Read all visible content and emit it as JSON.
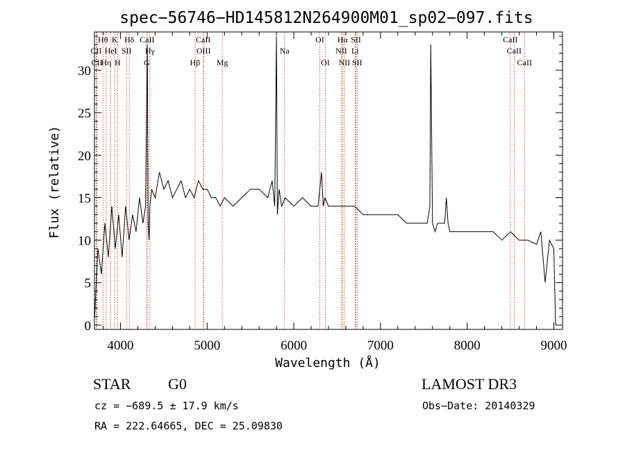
{
  "chart_data": {
    "type": "line",
    "title": "spec−56746−HD145812N264900M01_sp02−097.fits",
    "xlabel": "Wavelength (Å)",
    "ylabel": "Flux (relative)",
    "xlim": [
      3700,
      9100
    ],
    "ylim": [
      -0.5,
      34.5
    ],
    "xticks": [
      4000,
      5000,
      6000,
      7000,
      8000,
      9000
    ],
    "yticks": [
      0,
      5,
      10,
      15,
      20,
      25,
      30
    ],
    "grid": false,
    "series": [
      {
        "x": [
          3700,
          3740,
          3780,
          3820,
          3860,
          3900,
          3940,
          3980,
          4020,
          4060,
          4100,
          4140,
          4180,
          4220,
          4260,
          4290,
          4310,
          4320,
          4330,
          4340,
          4360,
          4400,
          4450,
          4500,
          4550,
          4600,
          4650,
          4700,
          4750,
          4800,
          4850,
          4900,
          4950,
          5000,
          5050,
          5100,
          5150,
          5200,
          5300,
          5400,
          5500,
          5600,
          5700,
          5750,
          5780,
          5800,
          5810,
          5830,
          5860,
          5900,
          6000,
          6100,
          6200,
          6280,
          6300,
          6320,
          6340,
          6360,
          6400,
          6500,
          6600,
          6700,
          6800,
          6900,
          7000,
          7100,
          7200,
          7300,
          7400,
          7500,
          7540,
          7570,
          7580,
          7600,
          7630,
          7660,
          7700,
          7740,
          7760,
          7780,
          7800,
          7900,
          8000,
          8100,
          8200,
          8300,
          8400,
          8500,
          8600,
          8700,
          8800,
          8850,
          8900,
          8950,
          9000,
          9020
        ],
        "y": [
          0.5,
          9,
          6,
          12,
          8,
          14,
          9,
          13,
          8,
          14,
          10,
          13,
          11,
          15,
          12,
          14,
          33,
          12,
          10,
          14,
          16,
          15,
          18,
          16,
          17,
          15,
          16,
          17,
          15,
          16,
          15,
          17,
          16,
          16,
          15,
          15,
          14,
          15,
          14,
          15,
          16,
          16,
          15,
          17,
          14,
          34,
          13,
          16,
          14,
          15,
          14,
          15,
          14,
          14,
          16,
          18,
          14,
          15,
          14,
          14,
          14,
          14,
          13,
          13,
          13,
          13,
          13,
          12,
          12,
          12,
          12,
          14,
          33,
          12,
          11,
          12,
          12,
          12,
          15,
          12,
          11,
          11,
          11,
          11,
          11,
          11,
          10,
          11,
          10,
          10,
          9.5,
          11,
          5,
          10,
          9,
          0
        ]
      }
    ],
    "line_markers": [
      {
        "label": "Hθ",
        "wave": 3798,
        "row": 0
      },
      {
        "label": "K",
        "wave": 3934,
        "row": 0
      },
      {
        "label": "Hδ",
        "wave": 4102,
        "row": 0
      },
      {
        "label": "CaII",
        "wave": 4308,
        "row": 0
      },
      {
        "label": "CaII",
        "wave": 4955,
        "row": 0
      },
      {
        "label": "OI",
        "wave": 6300,
        "row": 0
      },
      {
        "label": "Hα",
        "wave": 6563,
        "row": 0
      },
      {
        "label": "SII",
        "wave": 6717,
        "row": 0
      },
      {
        "label": "CaII",
        "wave": 8498,
        "row": 0
      },
      {
        "label": "CII",
        "wave": 3720,
        "row": 1
      },
      {
        "label": "HeI",
        "wave": 3889,
        "row": 1
      },
      {
        "label": "SII",
        "wave": 4070,
        "row": 1
      },
      {
        "label": "Hγ",
        "wave": 4340,
        "row": 1
      },
      {
        "label": "OIII",
        "wave": 4959,
        "row": 1
      },
      {
        "label": "Na",
        "wave": 5893,
        "row": 1
      },
      {
        "label": "NII",
        "wave": 6548,
        "row": 1
      },
      {
        "label": "Li",
        "wave": 6707,
        "row": 1
      },
      {
        "label": "CaII",
        "wave": 8542,
        "row": 1
      },
      {
        "label": "CII",
        "wave": 3728,
        "row": 2
      },
      {
        "label": "Hη",
        "wave": 3835,
        "row": 2
      },
      {
        "label": "H",
        "wave": 3968,
        "row": 2
      },
      {
        "label": "G",
        "wave": 4304,
        "row": 2
      },
      {
        "label": "Hβ",
        "wave": 4861,
        "row": 2
      },
      {
        "label": "Mg",
        "wave": 5175,
        "row": 2
      },
      {
        "label": "OI",
        "wave": 6364,
        "row": 2
      },
      {
        "label": "NII",
        "wave": 6584,
        "row": 2
      },
      {
        "label": "SII",
        "wave": 6731,
        "row": 2
      },
      {
        "label": "CaII",
        "wave": 8662,
        "row": 2
      }
    ],
    "marker_color": "#b22222",
    "line_color": "#000000"
  },
  "info": {
    "object_class": "STAR",
    "subclass": "G0",
    "survey": "LAMOST DR3",
    "redshift": "cz = −689.5 ± 17.9 km/s",
    "obs_date": "Obs−Date: 20140329",
    "coords": "RA = 222.64665, DEC =  25.09830"
  }
}
